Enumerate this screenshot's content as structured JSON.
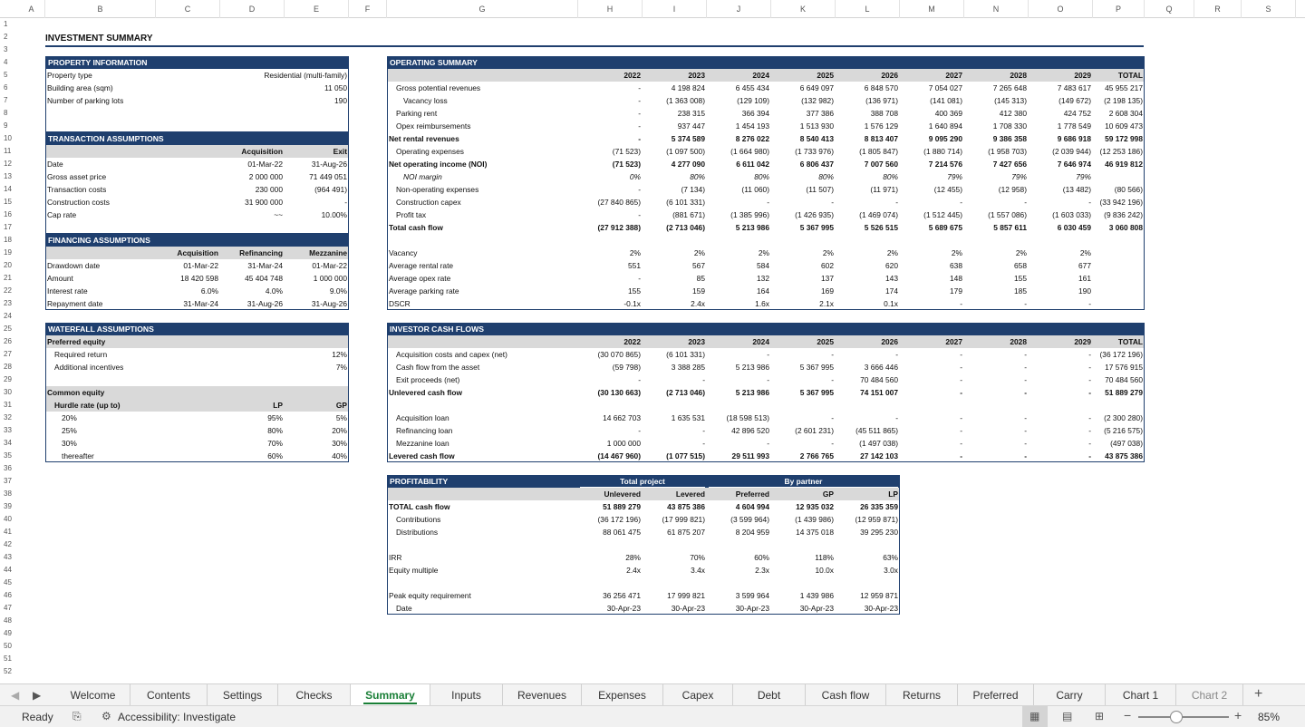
{
  "columns": [
    "A",
    "B",
    "C",
    "D",
    "E",
    "F",
    "G",
    "H",
    "I",
    "J",
    "K",
    "L",
    "M",
    "N",
    "O",
    "P",
    "Q",
    "R",
    "S"
  ],
  "rows": [
    "1",
    "2",
    "3",
    "4",
    "5",
    "6",
    "7",
    "8",
    "9",
    "10",
    "11",
    "12",
    "13",
    "14",
    "15",
    "16",
    "17",
    "18",
    "19",
    "20",
    "21",
    "22",
    "23",
    "24",
    "25",
    "26",
    "27",
    "28",
    "29",
    "30",
    "31",
    "32",
    "33",
    "34",
    "35",
    "36",
    "37",
    "38",
    "39",
    "40",
    "41",
    "42",
    "43",
    "44",
    "45",
    "46",
    "47",
    "48",
    "49",
    "50",
    "51",
    "52"
  ],
  "sheet_title": "INVESTMENT SUMMARY",
  "property": {
    "title": "PROPERTY INFORMATION",
    "rows": [
      [
        "Property type",
        "Residential (multi-family)"
      ],
      [
        "Building area (sqm)",
        "11 050"
      ],
      [
        "Number of parking lots",
        "190"
      ]
    ]
  },
  "transaction": {
    "title": "TRANSACTION ASSUMPTIONS",
    "headers": [
      "Acquisition",
      "Exit"
    ],
    "rows": [
      [
        "Date",
        "01-Mar-22",
        "31-Aug-26"
      ],
      [
        "Gross asset price",
        "2 000 000",
        "71 449 051"
      ],
      [
        "Transaction costs",
        "230 000",
        "(964 491)"
      ],
      [
        "Construction costs",
        "31 900 000",
        "-"
      ],
      [
        "Cap rate",
        "~~",
        "10.00%"
      ]
    ]
  },
  "financing": {
    "title": "FINANCING ASSUMPTIONS",
    "headers": [
      "Acquisition",
      "Refinancing",
      "Mezzanine"
    ],
    "rows": [
      [
        "Drawdown date",
        "01-Mar-22",
        "31-Mar-24",
        "01-Mar-22"
      ],
      [
        "Amount",
        "18 420 598",
        "45 404 748",
        "1 000 000"
      ],
      [
        "Interest rate",
        "6.0%",
        "4.0%",
        "9.0%"
      ],
      [
        "Repayment date",
        "31-Mar-24",
        "31-Aug-26",
        "31-Aug-26"
      ]
    ]
  },
  "waterfall": {
    "title": "WATERFALL ASSUMPTIONS",
    "preferred_label": "Preferred equity",
    "preferred": [
      [
        "Required return",
        "12%"
      ],
      [
        "Additional incentives",
        "7%"
      ]
    ],
    "common_label": "Common equity",
    "hurdle_label": "Hurdle rate (up to)",
    "lp": "LP",
    "gp": "GP",
    "hurdles": [
      [
        "20%",
        "95%",
        "5%"
      ],
      [
        "25%",
        "80%",
        "20%"
      ],
      [
        "30%",
        "70%",
        "30%"
      ],
      [
        "thereafter",
        "60%",
        "40%"
      ]
    ]
  },
  "operating": {
    "title": "OPERATING SUMMARY",
    "years": [
      "2022",
      "2023",
      "2024",
      "2025",
      "2026",
      "2027",
      "2028",
      "2029",
      "TOTAL"
    ],
    "rows": [
      {
        "label": "Gross potential revenues",
        "ind": 1,
        "v": [
          "-",
          "4 198 824",
          "6 455 434",
          "6 649 097",
          "6 848 570",
          "7 054 027",
          "7 265 648",
          "7 483 617",
          "45 955 217"
        ]
      },
      {
        "label": "Vacancy loss",
        "ind": 2,
        "v": [
          "-",
          "(1 363 008)",
          "(129 109)",
          "(132 982)",
          "(136 971)",
          "(141 081)",
          "(145 313)",
          "(149 672)",
          "(2 198 135)"
        ]
      },
      {
        "label": "Parking rent",
        "ind": 1,
        "v": [
          "-",
          "238 315",
          "366 394",
          "377 386",
          "388 708",
          "400 369",
          "412 380",
          "424 752",
          "2 608 304"
        ]
      },
      {
        "label": "Opex reimbursements",
        "ind": 1,
        "v": [
          "-",
          "937 447",
          "1 454 193",
          "1 513 930",
          "1 576 129",
          "1 640 894",
          "1 708 330",
          "1 778 549",
          "10 609 473"
        ]
      },
      {
        "label": "Net rental revenues",
        "ind": 0,
        "bold": true,
        "v": [
          "-",
          "5 374 589",
          "8 276 022",
          "8 540 413",
          "8 813 407",
          "9 095 290",
          "9 386 358",
          "9 686 918",
          "59 172 998"
        ]
      },
      {
        "label": "Operating expenses",
        "ind": 1,
        "v": [
          "(71 523)",
          "(1 097 500)",
          "(1 664 980)",
          "(1 733 976)",
          "(1 805 847)",
          "(1 880 714)",
          "(1 958 703)",
          "(2 039 944)",
          "(12 253 186)"
        ]
      },
      {
        "label": "Net operating income (NOI)",
        "ind": 0,
        "bold": true,
        "v": [
          "(71 523)",
          "4 277 090",
          "6 611 042",
          "6 806 437",
          "7 007 560",
          "7 214 576",
          "7 427 656",
          "7 646 974",
          "46 919 812"
        ]
      },
      {
        "label": "NOI margin",
        "ind": 2,
        "italic": true,
        "v": [
          "0%",
          "80%",
          "80%",
          "80%",
          "80%",
          "79%",
          "79%",
          "79%",
          ""
        ]
      },
      {
        "label": "Non-operating expenses",
        "ind": 1,
        "v": [
          "-",
          "(7 134)",
          "(11 060)",
          "(11 507)",
          "(11 971)",
          "(12 455)",
          "(12 958)",
          "(13 482)",
          "(80 566)"
        ]
      },
      {
        "label": "Construction capex",
        "ind": 1,
        "v": [
          "(27 840 865)",
          "(6 101 331)",
          "-",
          "-",
          "-",
          "-",
          "-",
          "-",
          "(33 942 196)"
        ]
      },
      {
        "label": "Profit tax",
        "ind": 1,
        "v": [
          "-",
          "(881 671)",
          "(1 385 996)",
          "(1 426 935)",
          "(1 469 074)",
          "(1 512 445)",
          "(1 557 086)",
          "(1 603 033)",
          "(9 836 242)"
        ]
      },
      {
        "label": "Total cash flow",
        "ind": 0,
        "bold": true,
        "v": [
          "(27 912 388)",
          "(2 713 046)",
          "5 213 986",
          "5 367 995",
          "5 526 515",
          "5 689 675",
          "5 857 611",
          "6 030 459",
          "3 060 808"
        ]
      }
    ],
    "ratios": [
      {
        "label": "Vacancy",
        "v": [
          "2%",
          "2%",
          "2%",
          "2%",
          "2%",
          "2%",
          "2%",
          "2%",
          ""
        ]
      },
      {
        "label": "Average rental rate",
        "v": [
          "551",
          "567",
          "584",
          "602",
          "620",
          "638",
          "658",
          "677",
          ""
        ]
      },
      {
        "label": "Average opex rate",
        "v": [
          "-",
          "85",
          "132",
          "137",
          "143",
          "148",
          "155",
          "161",
          ""
        ]
      },
      {
        "label": "Average parking rate",
        "v": [
          "155",
          "159",
          "164",
          "169",
          "174",
          "179",
          "185",
          "190",
          ""
        ]
      },
      {
        "label": "DSCR",
        "v": [
          "-0.1x",
          "2.4x",
          "1.6x",
          "2.1x",
          "0.1x",
          "-",
          "-",
          "-",
          ""
        ]
      }
    ]
  },
  "investor": {
    "title": "INVESTOR CASH FLOWS",
    "years": [
      "2022",
      "2023",
      "2024",
      "2025",
      "2026",
      "2027",
      "2028",
      "2029",
      "TOTAL"
    ],
    "rows": [
      {
        "row": 27,
        "label": "Acquisition costs and capex (net)",
        "ind": 1,
        "v": [
          "(30 070 865)",
          "(6 101 331)",
          "-",
          "-",
          "-",
          "-",
          "-",
          "-",
          "(36 172 196)"
        ]
      },
      {
        "row": 28,
        "label": "Cash flow from the asset",
        "ind": 1,
        "v": [
          "(59 798)",
          "3 388 285",
          "5 213 986",
          "5 367 995",
          "3 666 446",
          "-",
          "-",
          "-",
          "17 576 915"
        ]
      },
      {
        "row": 29,
        "label": "Exit proceeds (net)",
        "ind": 1,
        "v": [
          "-",
          "-",
          "-",
          "-",
          "70 484 560",
          "-",
          "-",
          "-",
          "70 484 560"
        ]
      },
      {
        "row": 30,
        "label": "Unlevered cash flow",
        "ind": 0,
        "bold": true,
        "v": [
          "(30 130 663)",
          "(2 713 046)",
          "5 213 986",
          "5 367 995",
          "74 151 007",
          "-",
          "-",
          "-",
          "51 889 279"
        ]
      },
      {
        "row": 32,
        "label": "Acquisition loan",
        "ind": 1,
        "v": [
          "14 662 703",
          "1 635 531",
          "(18 598 513)",
          "-",
          "-",
          "-",
          "-",
          "-",
          "(2 300 280)"
        ]
      },
      {
        "row": 33,
        "label": "Refinancing loan",
        "ind": 1,
        "v": [
          "-",
          "-",
          "42 896 520",
          "(2 601 231)",
          "(45 511 865)",
          "-",
          "-",
          "-",
          "(5 216 575)"
        ]
      },
      {
        "row": 34,
        "label": "Mezzanine loan",
        "ind": 1,
        "v": [
          "1 000 000",
          "-",
          "-",
          "-",
          "(1 497 038)",
          "-",
          "-",
          "-",
          "(497 038)"
        ]
      },
      {
        "row": 35,
        "label": "Levered cash flow",
        "ind": 0,
        "bold": true,
        "v": [
          "(14 467 960)",
          "(1 077 515)",
          "29 511 993",
          "2 766 765",
          "27 142 103",
          "-",
          "-",
          "-",
          "43 875 386"
        ]
      }
    ]
  },
  "profitability": {
    "title": "PROFITABILITY",
    "group1": "Total project",
    "group2": "By partner",
    "headers": [
      "Unlevered",
      "Levered",
      "Preferred",
      "GP",
      "LP"
    ],
    "rows": [
      {
        "row": 39,
        "label": "TOTAL cash flow",
        "ind": 0,
        "bold": true,
        "v": [
          "51 889 279",
          "43 875 386",
          "4 604 994",
          "12 935 032",
          "26 335 359"
        ]
      },
      {
        "row": 40,
        "label": "Contributions",
        "ind": 1,
        "v": [
          "(36 172 196)",
          "(17 999 821)",
          "(3 599 964)",
          "(1 439 986)",
          "(12 959 871)"
        ]
      },
      {
        "row": 41,
        "label": "Distributions",
        "ind": 1,
        "v": [
          "88 061 475",
          "61 875 207",
          "8 204 959",
          "14 375 018",
          "39 295 230"
        ]
      },
      {
        "row": 43,
        "label": "IRR",
        "ind": 0,
        "v": [
          "28%",
          "70%",
          "60%",
          "118%",
          "63%"
        ]
      },
      {
        "row": 44,
        "label": "Equity multiple",
        "ind": 0,
        "v": [
          "2.4x",
          "3.4x",
          "2.3x",
          "10.0x",
          "3.0x"
        ]
      },
      {
        "row": 46,
        "label": "Peak equity requirement",
        "ind": 0,
        "v": [
          "36 256 471",
          "17 999 821",
          "3 599 964",
          "1 439 986",
          "12 959 871"
        ]
      },
      {
        "row": 47,
        "label": "Date",
        "ind": 1,
        "v": [
          "30-Apr-23",
          "30-Apr-23",
          "30-Apr-23",
          "30-Apr-23",
          "30-Apr-23"
        ]
      }
    ]
  },
  "tabs": [
    "Welcome",
    "Contents",
    "Settings",
    "Checks",
    "Summary",
    "Inputs",
    "Revenues",
    "Expenses",
    "Capex",
    "Debt",
    "Cash flow",
    "Returns",
    "Preferred",
    "Carry",
    "Chart 1",
    "Chart 2"
  ],
  "active_tab": "Summary",
  "status": {
    "ready": "Ready",
    "accessibility": "Accessibility: Investigate",
    "zoom": "85%",
    "zoom_value": 0.85
  }
}
